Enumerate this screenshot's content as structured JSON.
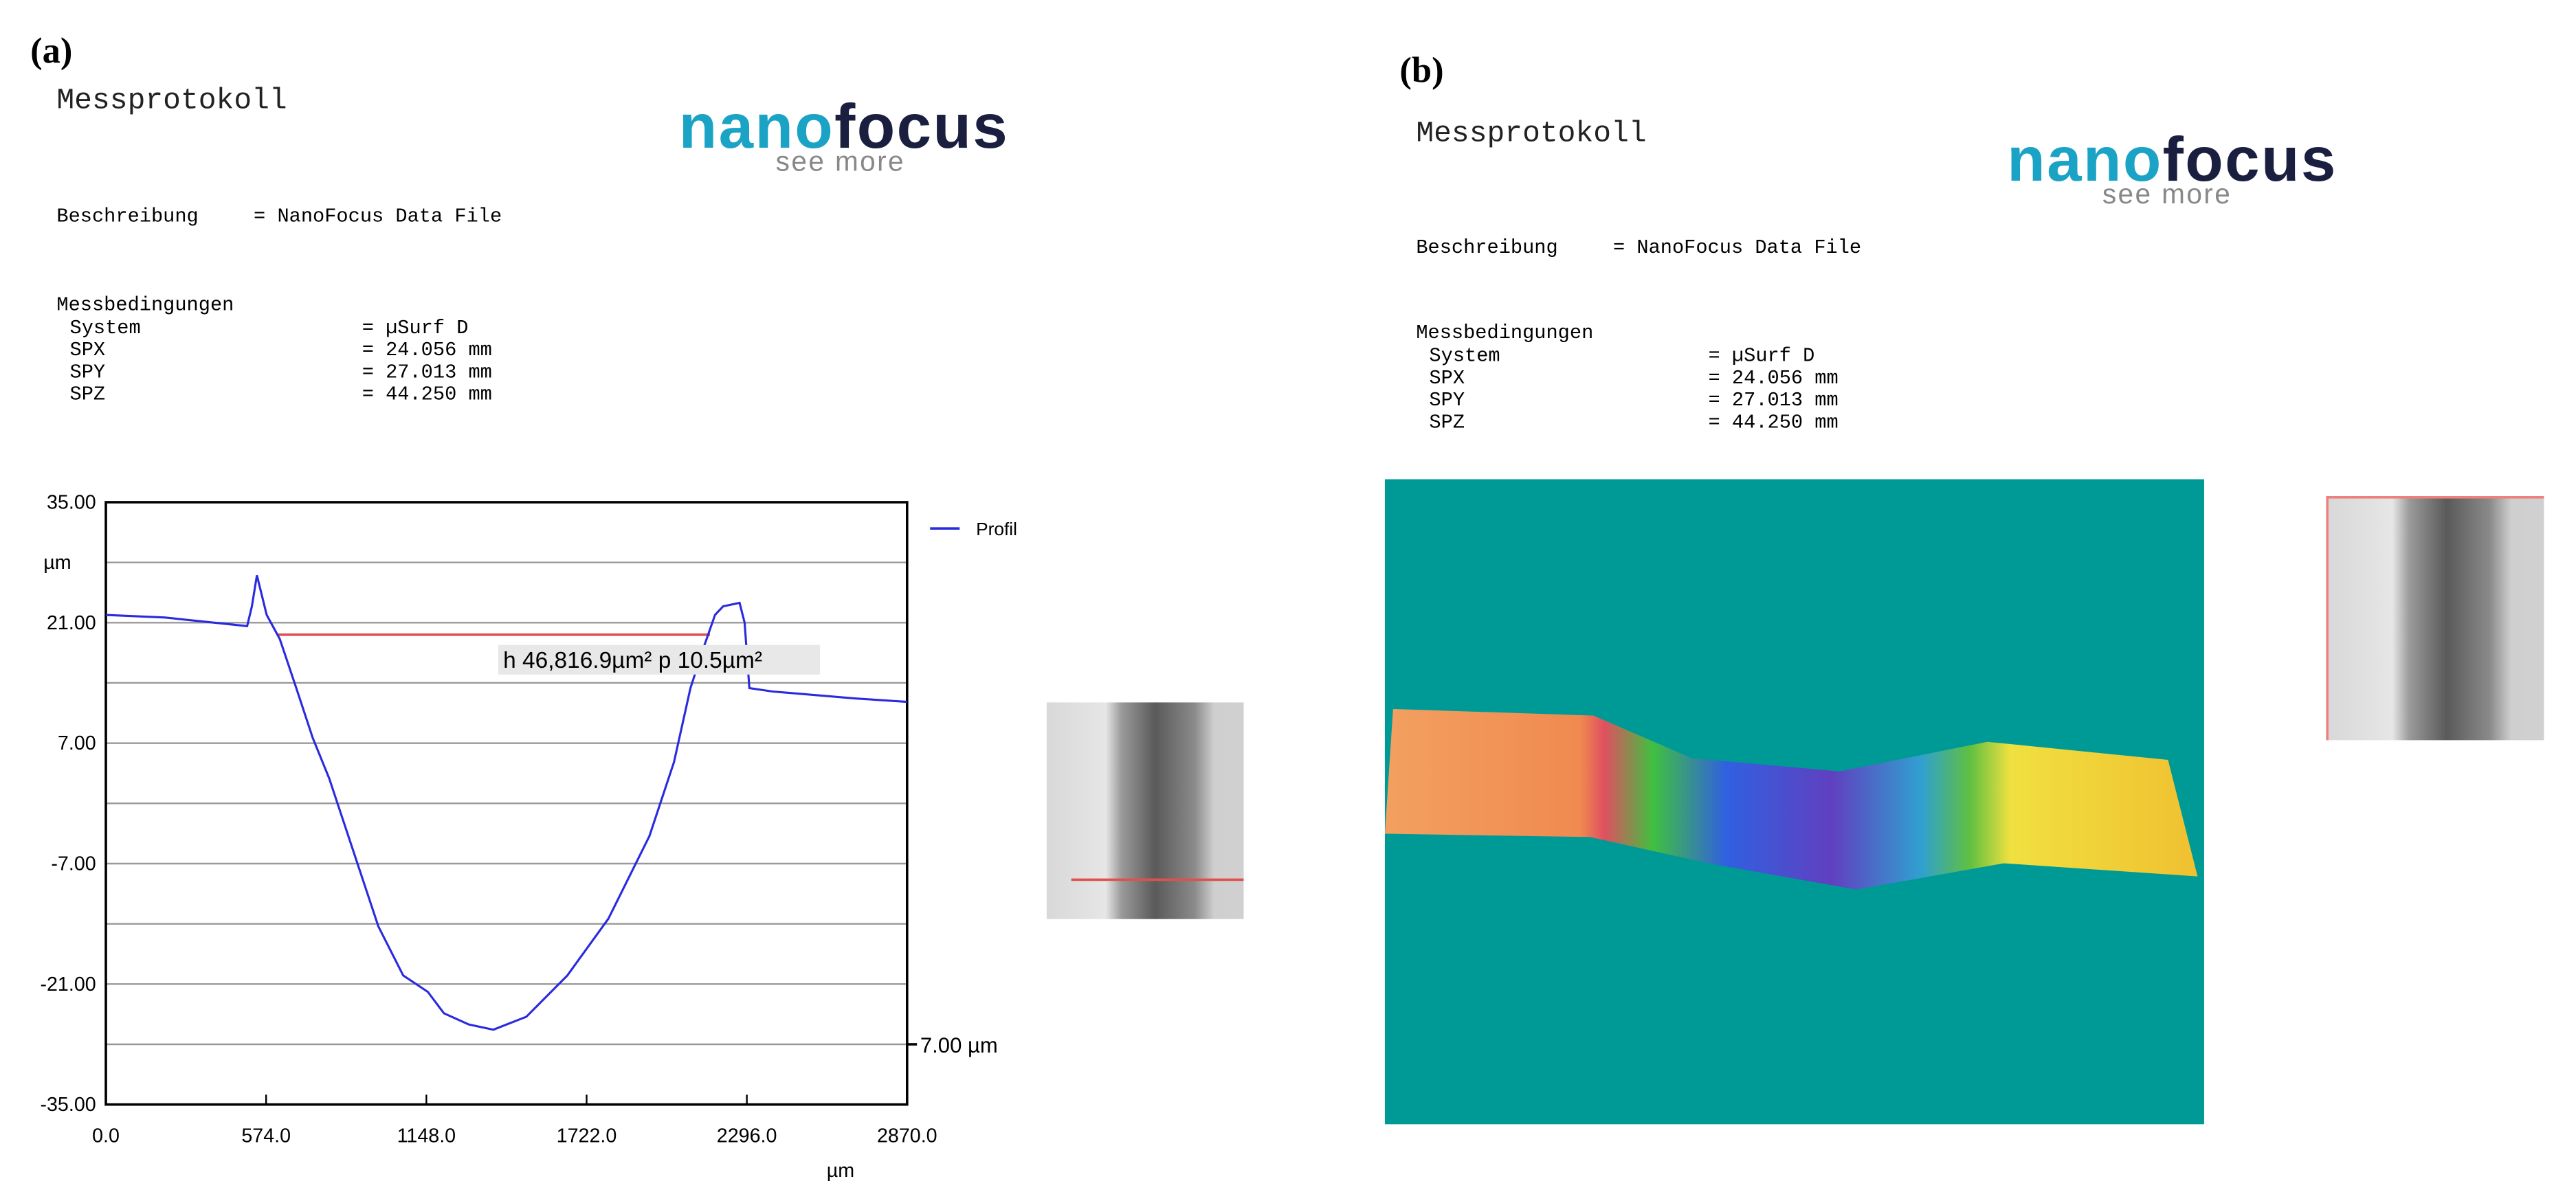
{
  "panels": [
    {
      "label": "(a)",
      "header_title": "Messprotokoll",
      "logo": {
        "part1": "nano",
        "part2": "focus",
        "tagline": "see more"
      },
      "description": {
        "label": "Beschreibung",
        "value": "= NanoFocus Data File"
      },
      "conditions": {
        "title": "Messbedingungen",
        "rows": [
          [
            "System",
            "= µSurf D"
          ],
          [
            "SPX",
            "= 24.056 mm"
          ],
          [
            "SPY",
            "= 27.013 mm"
          ],
          [
            "SPZ",
            "= 44.250 mm"
          ]
        ]
      }
    },
    {
      "label": "(b)",
      "header_title": "Messprotokoll",
      "logo": {
        "part1": "nano",
        "part2": "focus",
        "tagline": "see more"
      },
      "description": {
        "label": "Beschreibung",
        "value": "= NanoFocus Data File"
      },
      "conditions": {
        "title": "Messbedingungen",
        "rows": [
          [
            "System",
            "= µSurf D"
          ],
          [
            "SPX",
            "= 24.056 mm"
          ],
          [
            "SPY",
            "= 27.013 mm"
          ],
          [
            "SPZ",
            "= 44.250 mm"
          ]
        ]
      }
    }
  ],
  "chart_data": {
    "type": "line",
    "ylabel": "µm",
    "xlabel": "µm",
    "x": [
      0,
      212,
      506,
      523,
      541,
      576,
      623,
      682,
      741,
      800,
      888,
      976,
      1065,
      1153,
      1211,
      1300,
      1388,
      1506,
      1653,
      1800,
      1947,
      2035,
      2094,
      2141,
      2182,
      2211,
      2270,
      2288,
      2305,
      2388,
      2682,
      2870
    ],
    "series": [
      {
        "name": "Profil",
        "color": "#2a2ae0",
        "values": [
          21.9,
          21.6,
          20.6,
          22.9,
          26.5,
          21.9,
          19.1,
          13.4,
          7.6,
          2.9,
          -5.7,
          -14.3,
          -20,
          -21.9,
          -24.4,
          -25.7,
          -26.3,
          -24.8,
          -20,
          -13.4,
          -3.8,
          4.8,
          13.4,
          18.1,
          21.9,
          22.9,
          23.3,
          21,
          13.4,
          13,
          12.2,
          11.8
        ]
      }
    ],
    "xlim": [
      0,
      2870
    ],
    "xticks": [
      {
        "value": 0,
        "label": "0.0"
      },
      {
        "value": 574,
        "label": "574.0"
      },
      {
        "value": 1148,
        "label": "1148.0"
      },
      {
        "value": 1722,
        "label": "1722.0"
      },
      {
        "value": 2296,
        "label": "2296.0"
      },
      {
        "value": 2870,
        "label": "2870.0"
      }
    ],
    "ylim": [
      -35,
      35
    ],
    "yticks": [
      {
        "value": 35,
        "label": "35.00"
      },
      {
        "value": 21,
        "label": "21.00"
      },
      {
        "value": 7,
        "label": "7.00"
      },
      {
        "value": -7,
        "label": "-7.00"
      },
      {
        "value": -21,
        "label": "-21.00"
      },
      {
        "value": -35,
        "label": "-35.00"
      }
    ],
    "minor_yticks": [
      28,
      14,
      0,
      -14,
      -28
    ],
    "grid": true,
    "reference_line": {
      "y": 19.6,
      "x": [
        612,
        2164
      ],
      "color": "#e05050"
    },
    "annotation": "h 46,816.9µm² p 10.5µm²",
    "right_marker": {
      "value": -28,
      "label": "7.00 µm"
    }
  }
}
